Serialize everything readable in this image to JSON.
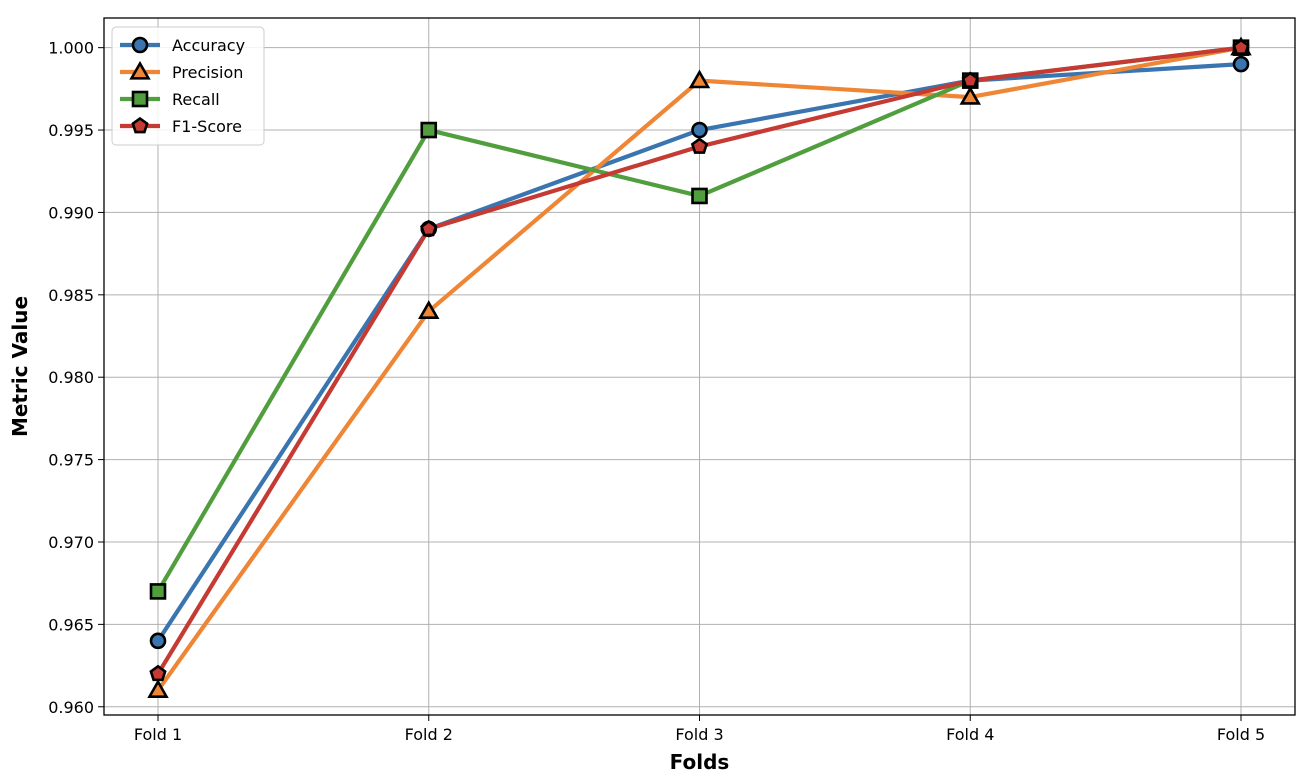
{
  "chart_data": {
    "type": "line",
    "title": "",
    "xlabel": "Folds",
    "ylabel": "Metric Value",
    "categories": [
      "Fold 1",
      "Fold 2",
      "Fold 3",
      "Fold 4",
      "Fold 5"
    ],
    "ylim": [
      0.9595,
      1.0018
    ],
    "yticks": [
      0.96,
      0.965,
      0.97,
      0.975,
      0.98,
      0.985,
      0.99,
      0.995,
      1.0
    ],
    "ytick_labels": [
      "0.960",
      "0.965",
      "0.970",
      "0.975",
      "0.980",
      "0.985",
      "0.990",
      "0.995",
      "1.000"
    ],
    "grid": true,
    "legend_position": "top-left",
    "series": [
      {
        "name": "Accuracy",
        "marker": "circle",
        "color": "#3a75b0",
        "values": [
          0.964,
          0.989,
          0.995,
          0.998,
          0.999
        ]
      },
      {
        "name": "Precision",
        "marker": "triangle",
        "color": "#ef8636",
        "values": [
          0.961,
          0.984,
          0.998,
          0.997,
          1.0
        ]
      },
      {
        "name": "Recall",
        "marker": "square",
        "color": "#519e3e",
        "values": [
          0.967,
          0.995,
          0.991,
          0.998,
          1.0
        ]
      },
      {
        "name": "F1-Score",
        "marker": "pentagon",
        "color": "#c53a32",
        "values": [
          0.962,
          0.989,
          0.994,
          0.998,
          1.0
        ]
      }
    ]
  }
}
